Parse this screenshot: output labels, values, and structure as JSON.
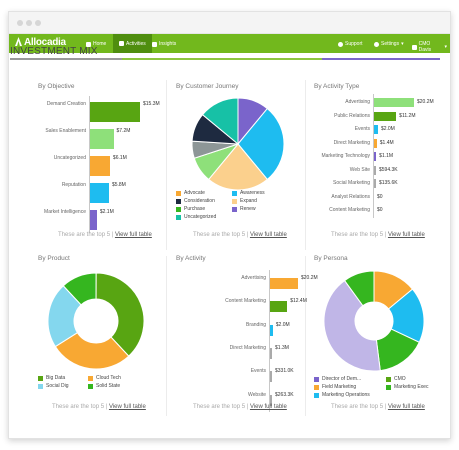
{
  "nav": {
    "logo": "Allocadia",
    "home": "Home",
    "activities": "Activities",
    "insights": "Insights",
    "support": "Support",
    "settings": "Settings",
    "user": "CMO Davis"
  },
  "page_title": "INVESTMENT MIX",
  "footer": {
    "text": "These are the top 5 |",
    "link": "View full table"
  },
  "colors": {
    "green": "#72b81d",
    "light_green": "#8ee07a",
    "orange": "#f8a833",
    "cyan": "#1ebcf0",
    "purple": "#7a64cb",
    "teal": "#17c1a6",
    "navy": "#1e2a40",
    "gray": "#8d9697",
    "peach": "#fbd08d",
    "lime": "#35b61f",
    "sky": "#84d7ee",
    "lavender": "#c0b6e7"
  },
  "chart_data": [
    {
      "type": "bar",
      "title": "By Objective",
      "categories": [
        "Demand Creation",
        "Sales Enablement",
        "Uncategorized",
        "Reputation",
        "Market Intelligence"
      ],
      "values": [
        15.3,
        7.2,
        6.1,
        5.8,
        2.1
      ],
      "value_labels": [
        "$15.3M",
        "$7.2M",
        "$6.1M",
        "$5.8M",
        "$2.1M"
      ],
      "colors": [
        "#58a512",
        "#8ee07a",
        "#f8a833",
        "#1ebcf0",
        "#7a64cb"
      ]
    },
    {
      "type": "pie",
      "title": "By Customer Journey",
      "labels": [
        "Advocate",
        "Awareness",
        "Consideration",
        "Expand",
        "Purchase",
        "Renew",
        "Uncategorized"
      ],
      "values": [
        14,
        28,
        10,
        22,
        9,
        11,
        6
      ],
      "colors": [
        "#f8a833",
        "#1ebcf0",
        "#1e2a40",
        "#fbd08d",
        "#35b61f",
        "#7a64cb",
        "#17c1a6"
      ],
      "slice_order": [
        "Renew",
        "Awareness",
        "Expand",
        "Purchase",
        "Uncategorized",
        "Consideration",
        "Advocate"
      ],
      "slice_colors": [
        "#7a64cb",
        "#1ebcf0",
        "#fbd08d",
        "#8ee07a",
        "#8d9697",
        "#1e2a40",
        "#17c1a6"
      ]
    },
    {
      "type": "bar",
      "title": "By Activity Type",
      "categories": [
        "Advertising",
        "Public Relations",
        "Events",
        "Direct Marketing",
        "Marketing Technology",
        "Web Site",
        "Social Marketing",
        "Analyst Relations",
        "Content Marketing"
      ],
      "values": [
        20.2,
        11.2,
        2.0,
        1.4,
        1.1,
        0.5943,
        0.1356,
        0,
        0
      ],
      "value_labels": [
        "$20.2M",
        "$11.2M",
        "$2.0M",
        "$1.4M",
        "$1.1M",
        "$594.3K",
        "$135.6K",
        "$0",
        "$0"
      ],
      "colors": [
        "#8ee07a",
        "#58a512",
        "#1ebcf0",
        "#f8a833",
        "#7a64cb",
        "#aaaaaa",
        "#aaaaaa",
        "#aaaaaa",
        "#aaaaaa"
      ]
    },
    {
      "type": "pie",
      "title": "By Product",
      "labels": [
        "Big Data",
        "Cloud Tech",
        "Social Dig",
        "Solid State"
      ],
      "values": [
        38,
        28,
        22,
        12
      ],
      "colors": [
        "#58a512",
        "#f8a833",
        "#84d7ee",
        "#35b61f"
      ]
    },
    {
      "type": "bar",
      "title": "By Activity",
      "categories": [
        "Advertising",
        "Content Marketing",
        "Branding",
        "Direct Marketing",
        "Events",
        "Website"
      ],
      "values": [
        20.2,
        12.4,
        2.0,
        1.3,
        0.331,
        0.2633
      ],
      "value_labels": [
        "$20.2M",
        "$12.4M",
        "$2.0M",
        "$1.3M",
        "$331.0K",
        "$263.3K"
      ],
      "colors": [
        "#f8a833",
        "#58a512",
        "#1ebcf0",
        "#aaaaaa",
        "#aaaaaa",
        "#aaaaaa"
      ]
    },
    {
      "type": "pie",
      "title": "By Persona",
      "labels": [
        "Director of Dem...",
        "CMO",
        "Field Marketing",
        "Marketing Exec",
        "Marketing Operations"
      ],
      "values": [
        42,
        10,
        14,
        16,
        18
      ],
      "colors": [
        "#7a64cb",
        "#58a512",
        "#f8a833",
        "#35b61f",
        "#1ebcf0"
      ],
      "slice_order": [
        "Field Marketing",
        "Marketing Operations",
        "Marketing Exec",
        "Director of Dem...",
        "CMO"
      ],
      "slice_colors": [
        "#f8a833",
        "#1ebcf0",
        "#35b61f",
        "#c0b6e7",
        "#35b61f"
      ]
    }
  ]
}
